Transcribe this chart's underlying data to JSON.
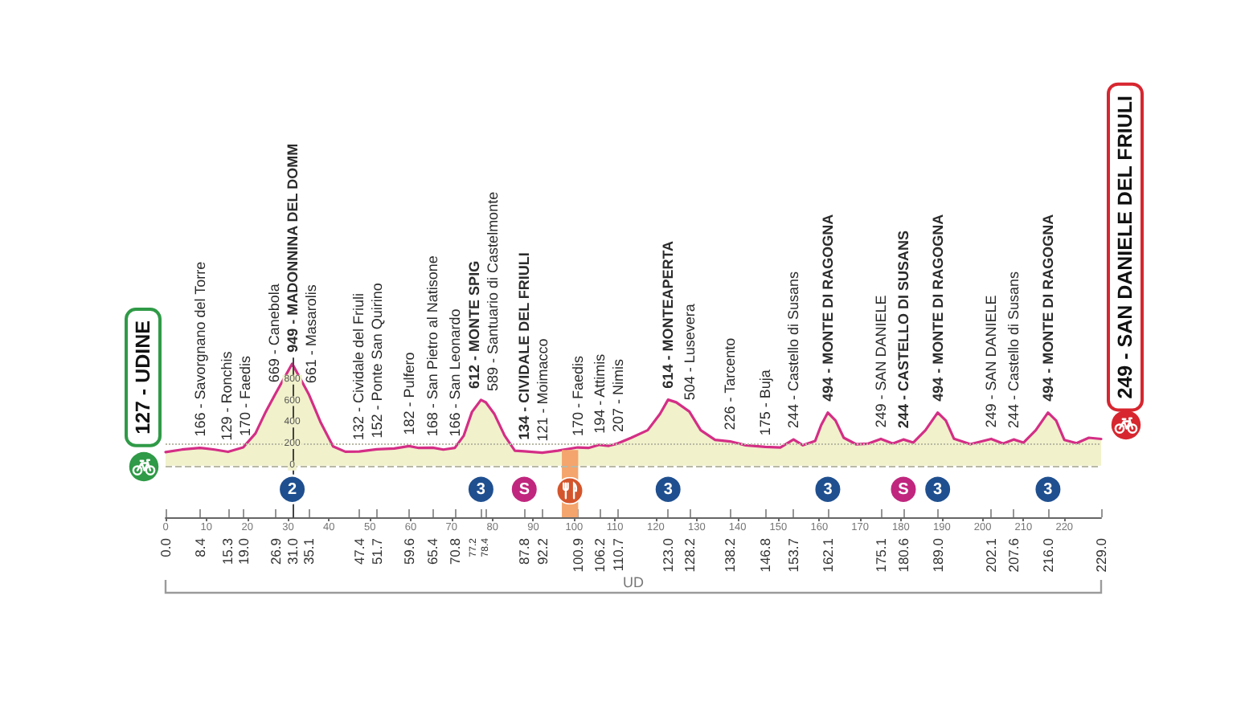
{
  "chart_data": {
    "type": "area",
    "x": [
      0,
      4,
      8.4,
      12,
      15.3,
      19,
      22,
      24.5,
      26.9,
      31,
      35.1,
      38,
      41,
      44,
      47.4,
      51.7,
      56,
      59.6,
      62,
      65.4,
      68,
      70.8,
      73,
      75,
      77.2,
      78.4,
      80.5,
      83,
      85.5,
      87.8,
      92.2,
      96,
      100.9,
      103.5,
      106.2,
      108.5,
      110.7,
      114,
      118,
      121,
      123,
      125,
      128.2,
      131,
      134.5,
      138.2,
      142,
      146.8,
      150.5,
      153.7,
      156,
      159,
      160.5,
      162.1,
      164,
      166,
      169,
      172,
      175.1,
      178,
      180.6,
      183,
      186,
      189,
      191,
      193,
      197,
      202.1,
      205,
      207.6,
      210,
      213,
      216,
      218,
      220,
      223,
      226,
      229
    ],
    "series": [
      {
        "color": "#f1f1cb",
        "marker": "none",
        "values": [
          127,
          150,
          166,
          150,
          129,
          170,
          300,
          500,
          669,
          949,
          661,
          400,
          180,
          130,
          132,
          152,
          160,
          182,
          165,
          168,
          150,
          166,
          280,
          500,
          612,
          589,
          480,
          280,
          140,
          134,
          121,
          140,
          170,
          165,
          194,
          185,
          207,
          260,
          330,
          480,
          614,
          590,
          504,
          330,
          240,
          226,
          190,
          175,
          170,
          244,
          190,
          230,
          380,
          494,
          420,
          260,
          200,
          205,
          249,
          205,
          244,
          215,
          330,
          494,
          420,
          250,
          200,
          249,
          205,
          244,
          215,
          330,
          494,
          420,
          240,
          210,
          260,
          249
        ],
        "value_labels": [
          "127 - UDINE",
          null,
          "166 - Savorgnano del Torre",
          null,
          "129 - Ronchis",
          "170 - Faedis",
          null,
          null,
          "669 - Canebola",
          "949 - MADONNINA DEL DOMM",
          "661 - Masarolis",
          null,
          null,
          null,
          "132 - Cividale del Friuli",
          "152 - Ponte San Quirino",
          null,
          "182 - Pulfero",
          null,
          "168 - San Pietro al Natisone",
          null,
          "166 - San Leonardo",
          null,
          null,
          "612 - MONTE SPIG",
          "589 - Santuario di Castelmonte",
          null,
          null,
          null,
          "134 - CIVIDALE DEL FRIULI",
          "121 - Moimacco",
          null,
          "170 - Faedis",
          null,
          "194 - Attimis",
          null,
          "207 - Nimis",
          null,
          null,
          null,
          "614 - MONTEAPERTA",
          null,
          "504 - Lusevera",
          null,
          null,
          "226 - Tarcento",
          null,
          "175 - Buja",
          null,
          "244 - Castello di Susans",
          null,
          null,
          null,
          "494 - MONTE DI RAGOGNA",
          null,
          null,
          null,
          null,
          "249 - SAN DANIELE",
          null,
          "244 - CASTELLO DI SUSANS",
          null,
          null,
          "494 - MONTE DI RAGOGNA",
          null,
          null,
          null,
          "249 - SAN DANIELE",
          null,
          "244 - Castello di Susans",
          null,
          null,
          "494 - MONTE DI RAGOGNA",
          null,
          null,
          null,
          null,
          "249 - SAN DANIELE DEL FRIULI"
        ]
      },
      {
        "type": "scatter",
        "color": "#1f4f8f",
        "marker": "circle",
        "x": [
          31,
          77.2,
          123,
          162.1,
          189,
          216
        ],
        "values": [
          -220,
          -220,
          -220,
          -220,
          -220,
          -220
        ]
      },
      {
        "type": "scatter",
        "color": "#c0267e",
        "marker": "circle",
        "x": [
          87.8,
          180.6
        ],
        "values": [
          -220,
          -220
        ]
      }
    ],
    "annotations": [
      {
        "text": "2",
        "x": 31,
        "y": -220
      },
      {
        "text": "3",
        "x": 77.2,
        "y": -220
      },
      {
        "text": "S",
        "x": 87.8,
        "y": -220
      },
      {
        "text": "3",
        "x": 123,
        "y": -220
      },
      {
        "text": "3",
        "x": 162.1,
        "y": -220
      },
      {
        "text": "S",
        "x": 180.6,
        "y": -220
      },
      {
        "text": "3",
        "x": 189,
        "y": -220
      },
      {
        "text": "3",
        "x": 216,
        "y": -220
      },
      "UD"
    ],
    "xlim": [
      0,
      229
    ],
    "xticks": [
      0,
      10,
      20,
      30,
      40,
      50,
      60,
      70,
      80,
      90,
      100,
      110,
      120,
      130,
      140,
      150,
      160,
      170,
      180,
      190,
      200,
      210,
      220
    ],
    "x2lim": [
      0,
      229
    ],
    "x2ticks": [
      {
        "value": 0,
        "label": "0.0"
      },
      8.4,
      15.3,
      {
        "value": 19,
        "label": "19.0"
      },
      26.9,
      {
        "value": 31,
        "label": "31.0"
      },
      35.1,
      47.4,
      51.7,
      59.6,
      65.4,
      70.8,
      77.2,
      78.4,
      87.8,
      92.2,
      100.9,
      106.2,
      110.7,
      {
        "value": 123,
        "label": "123.0"
      },
      128.2,
      138.2,
      146.8,
      153.7,
      162.1,
      175.1,
      180.6,
      {
        "value": 189,
        "label": "189.0"
      },
      202.1,
      207.6,
      {
        "value": 216,
        "label": "216.0"
      },
      {
        "value": 229,
        "label": "229.0"
      }
    ],
    "ylim": [
      -480,
      1000
    ],
    "yticks": [
      0,
      200,
      400,
      600,
      800
    ],
    "ref_lines": [
      {
        "axis": "y",
        "value": 0,
        "line_style": "dashed",
        "color": "#b9b9a6"
      },
      {
        "axis": "y",
        "value": 200,
        "line_style": "dotted",
        "color": "#b9b9a6"
      }
    ],
    "bands": [
      {
        "axis": "x",
        "from": 97,
        "to": 101,
        "color": "#f4a46d"
      }
    ]
  }
}
